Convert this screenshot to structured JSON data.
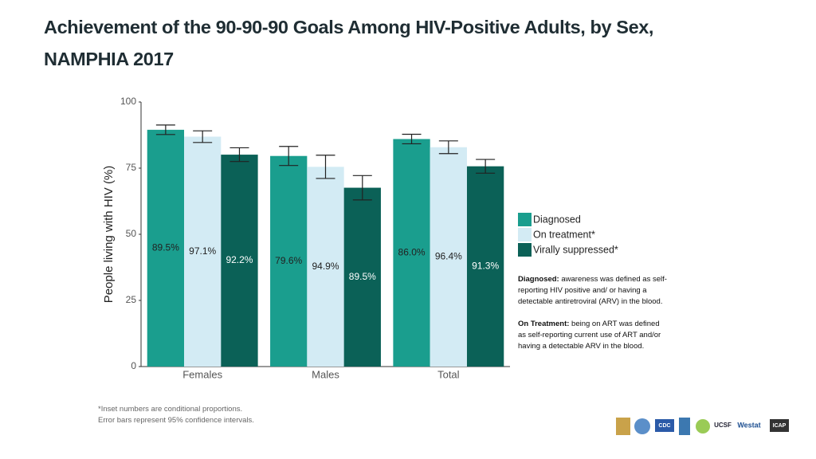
{
  "chart_data": {
    "type": "bar",
    "title": [
      "Achievement of the 90-90-90 Goals Among HIV-Positive Adults, by Sex,",
      "NAMPHIA 2017"
    ],
    "y_label": "People living with HIV (%)",
    "categories": [
      "Females",
      "Males",
      "Total"
    ],
    "ylim": [
      0,
      100
    ],
    "yticks": [
      0,
      25,
      50,
      75,
      100
    ],
    "grid": false,
    "series": [
      {
        "name": "Diagnosed",
        "color": "#1a9e8e",
        "values": [
          89.5,
          79.6,
          86.0
        ],
        "errors": [
          1.8,
          3.6,
          1.8
        ],
        "inset_labels": [
          "89.5%",
          "79.6%",
          "86.0%"
        ]
      },
      {
        "name": "On treatment*",
        "color": "#d3ebf4",
        "values": [
          86.9,
          75.5,
          82.9
        ],
        "errors": [
          2.2,
          4.4,
          2.4
        ],
        "inset_labels": [
          "97.1%",
          "94.9%",
          "96.4%"
        ]
      },
      {
        "name": "Virally suppressed*",
        "color": "#0b6157",
        "values": [
          80.1,
          67.6,
          75.7
        ],
        "errors": [
          2.6,
          4.6,
          2.6
        ],
        "inset_labels": [
          "92.2%",
          "89.5%",
          "91.3%"
        ]
      }
    ],
    "notes": [
      {
        "term": "Diagnosed:",
        "text": "awareness was defined as self-reporting HIV positive and/ or having a detectable antiretroviral (ARV) in the blood."
      },
      {
        "term": "On Treatment:",
        "text": "being on ART was defined as self-reporting current use of ART and/or having a detectable ARV in the blood."
      }
    ],
    "footnote": [
      "*Inset numbers are conditional proportions.",
      "Error bars represent 95% confidence intervals."
    ],
    "logos": [
      "CDC",
      "UCSF",
      "Westat",
      "ICAP"
    ]
  }
}
